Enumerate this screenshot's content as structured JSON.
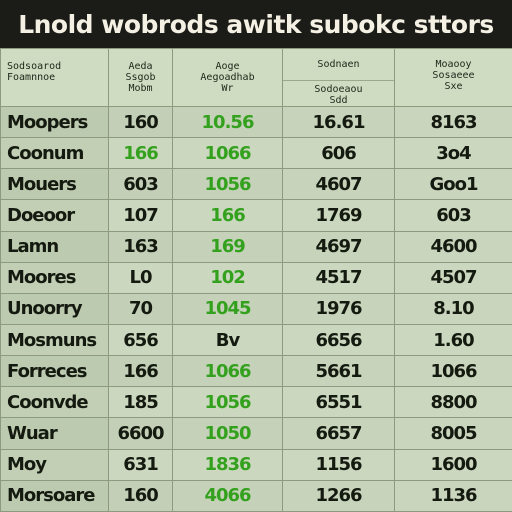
{
  "title": "Lnold wobrods awitk subokc sttors",
  "chart_data": {
    "type": "table",
    "columns": [
      {
        "header": [
          "Sodsoarod",
          "Foamnnoe"
        ]
      },
      {
        "header": [
          "Aeda",
          "Ssgob",
          "Mobm"
        ]
      },
      {
        "header": [
          "Aoge",
          "Aegoadhab",
          "Wr"
        ]
      },
      {
        "header": [
          "Sodnaen",
          "Sodoeaou",
          "Sdd"
        ]
      },
      {
        "header": [
          "Moaooy",
          "Sosaeee",
          "Sxe"
        ]
      }
    ],
    "rows": [
      {
        "label": "Moopers",
        "cells": [
          "160",
          "10.56",
          "16.61",
          "8163"
        ]
      },
      {
        "label": "Coonum",
        "cells": [
          "166",
          "1066",
          "606",
          "3o4"
        ]
      },
      {
        "label": "Mouers",
        "cells": [
          "603",
          "1056",
          "4607",
          "Goo1"
        ]
      },
      {
        "label": "Doeoor",
        "cells": [
          "107",
          "166",
          "1769",
          "603"
        ]
      },
      {
        "label": "Lamn",
        "cells": [
          "163",
          "169",
          "4697",
          "4600"
        ]
      },
      {
        "label": "Moores",
        "cells": [
          "L0",
          "102",
          "4517",
          "4507"
        ]
      },
      {
        "label": "Unoorry",
        "cells": [
          "70",
          "1045",
          "1976",
          "8.10"
        ]
      },
      {
        "label": "Mosmuns",
        "cells": [
          "656",
          "Bv",
          "6656",
          "1.60"
        ]
      },
      {
        "label": "Forreces",
        "cells": [
          "166",
          "1066",
          "5661",
          "1066"
        ]
      },
      {
        "label": "Coonvde",
        "cells": [
          "185",
          "1056",
          "6551",
          "8800"
        ]
      },
      {
        "label": "Wuar",
        "cells": [
          "6600",
          "1050",
          "6657",
          "8005"
        ]
      },
      {
        "label": "Moy",
        "cells": [
          "631",
          "1836",
          "1156",
          "1600"
        ]
      },
      {
        "label": "Morsoare",
        "cells": [
          "160",
          "4066",
          "1266",
          "1136"
        ]
      }
    ],
    "green_cells": [
      [
        0,
        1
      ],
      [
        1,
        0
      ],
      [
        1,
        1
      ],
      [
        2,
        1
      ],
      [
        3,
        1
      ],
      [
        4,
        1
      ],
      [
        5,
        1
      ],
      [
        6,
        1
      ],
      [
        8,
        1
      ],
      [
        9,
        1
      ],
      [
        10,
        1
      ],
      [
        11,
        1
      ],
      [
        12,
        1
      ]
    ],
    "colors": {
      "title_bg": "#1b1b17",
      "title_text": "#f4f1e4",
      "table_bg": "#c7d4ba",
      "cell_text": "#151a10",
      "green_text": "#33a11e",
      "grid": "#8c9a7e"
    }
  }
}
